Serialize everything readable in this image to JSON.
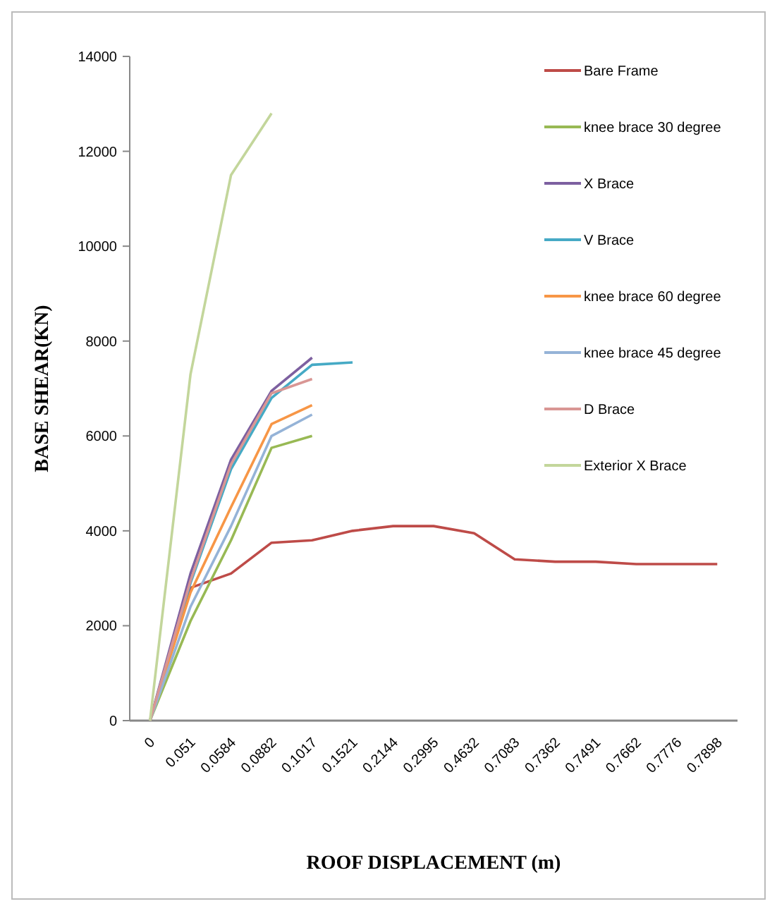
{
  "chart_data": {
    "type": "line",
    "xlabel": "ROOF DISPLACEMENT (m)",
    "ylabel": "BASE SHEAR(KN)",
    "categories": [
      "0",
      "0.051",
      "0.0584",
      "0.0882",
      "0.1017",
      "0.1521",
      "0.2144",
      "0.2995",
      "0.4632",
      "0.7083",
      "0.7362",
      "0.7491",
      "0.7662",
      "0.7776",
      "0.7898"
    ],
    "ylim": [
      0,
      14000
    ],
    "yticks": [
      0,
      2000,
      4000,
      6000,
      8000,
      10000,
      12000,
      14000
    ],
    "grid": false,
    "legend": "right",
    "marker": "none",
    "line_style": "solid",
    "series": [
      {
        "name": "Bare Frame",
        "color": "#be4b48",
        "values": [
          0,
          2800,
          3100,
          3750,
          3800,
          4000,
          4100,
          4100,
          3950,
          3400,
          3350,
          3350,
          3300,
          3300,
          3300
        ]
      },
      {
        "name": "knee brace 30 degree",
        "color": "#98b954",
        "values": [
          0,
          2100,
          3800,
          5750,
          6000,
          null,
          null,
          null,
          null,
          null,
          null,
          null,
          null,
          null,
          null
        ]
      },
      {
        "name": "X Brace",
        "color": "#7d60a0",
        "values": [
          0,
          3100,
          5500,
          6950,
          7650,
          null,
          null,
          null,
          null,
          null,
          null,
          null,
          null,
          null,
          null
        ]
      },
      {
        "name": "V Brace",
        "color": "#46aac5",
        "values": [
          0,
          2900,
          5300,
          6800,
          7500,
          7550,
          null,
          null,
          null,
          null,
          null,
          null,
          null,
          null,
          null
        ]
      },
      {
        "name": "knee brace 60 degree",
        "color": "#f79646",
        "values": [
          0,
          2700,
          4500,
          6250,
          6650,
          null,
          null,
          null,
          null,
          null,
          null,
          null,
          null,
          null,
          null
        ]
      },
      {
        "name": "knee brace 45 degree",
        "color": "#95b3d7",
        "values": [
          0,
          2400,
          4100,
          6000,
          6450,
          null,
          null,
          null,
          null,
          null,
          null,
          null,
          null,
          null,
          null
        ]
      },
      {
        "name": "D Brace",
        "color": "#d99694",
        "values": [
          0,
          2950,
          5400,
          6900,
          7200,
          null,
          null,
          null,
          null,
          null,
          null,
          null,
          null,
          null,
          null
        ]
      },
      {
        "name": "Exterior X Brace",
        "color": "#c3d69b",
        "values": [
          0,
          7300,
          11500,
          12800,
          null,
          null,
          null,
          null,
          null,
          null,
          null,
          null,
          null,
          null,
          null
        ]
      }
    ]
  }
}
